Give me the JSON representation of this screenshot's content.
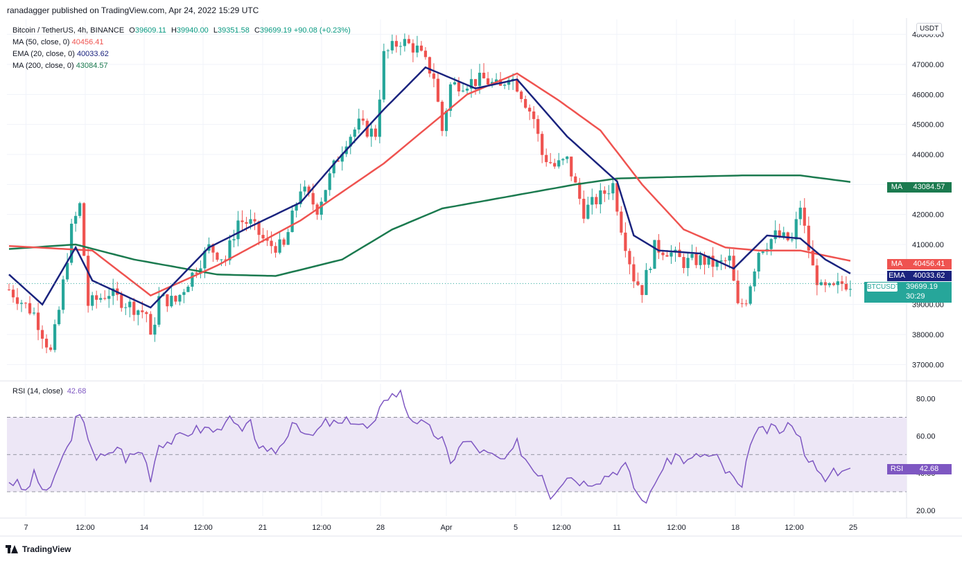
{
  "header": {
    "publisher": "ranadagger published on TradingView.com, Apr 24, 2022 15:29 UTC",
    "symbol": "Bitcoin / TetherUS, 4h, BINANCE",
    "open_label": "O",
    "open": "39609.11",
    "high_label": "H",
    "high": "39940.00",
    "low_label": "L",
    "low": "39351.58",
    "close_label": "C",
    "close": "39699.19",
    "change": "+90.08 (+0.23%)",
    "ma50_label": "MA (50, close, 0)",
    "ma50_value": "40456.41",
    "ema20_label": "EMA (20, close, 0)",
    "ema20_value": "40033.62",
    "ma200_label": "MA (200, close, 0)",
    "ma200_value": "43084.57",
    "rsi_label": "RSI (14, close)",
    "rsi_value": "42.68",
    "currency": "USDT"
  },
  "badges": {
    "ma200": {
      "tag": "MA",
      "value": "43084.57"
    },
    "ma50": {
      "tag": "MA",
      "value": "40456.41"
    },
    "ema20": {
      "tag": "EMA",
      "value": "40033.62"
    },
    "price": {
      "symbol": "BTCUSDT",
      "value": "39699.19",
      "countdown": "30:29"
    },
    "rsi": {
      "tag": "RSI",
      "value": "42.68"
    }
  },
  "footer": {
    "brand": "TradingView"
  },
  "colors": {
    "up": "#26a69a",
    "down": "#ef5350",
    "ma50": "#ef5350",
    "ema20": "#1a237e",
    "ma200": "#1b7a4f",
    "rsi": "#7e57c2",
    "rsi_band": "#ede7f6",
    "grid": "#f0f3fa"
  },
  "chart_data": [
    {
      "type": "candlestick",
      "title": "Bitcoin / TetherUS, 4h, BINANCE",
      "ylim": [
        36500,
        48500
      ],
      "yticks": [
        "48000.00",
        "47000.00",
        "46000.00",
        "45000.00",
        "44000.00",
        "43000.00",
        "42000.00",
        "41000.00",
        "40000.00",
        "39000.00",
        "38000.00",
        "37000.00"
      ],
      "xticks": [
        "7",
        "12:00",
        "14",
        "12:00",
        "21",
        "12:00",
        "28",
        "Apr",
        "5",
        "12:00",
        "11",
        "12:00",
        "18",
        "12:00",
        "25"
      ],
      "close_path": [
        [
          0,
          39500
        ],
        [
          6,
          38700
        ],
        [
          10,
          37400
        ],
        [
          12,
          38800
        ],
        [
          15,
          41500
        ],
        [
          17,
          42300
        ],
        [
          19,
          39000
        ],
        [
          24,
          39400
        ],
        [
          26,
          39200
        ],
        [
          30,
          38900
        ],
        [
          33,
          38700
        ],
        [
          34,
          37800
        ],
        [
          36,
          39200
        ],
        [
          40,
          39100
        ],
        [
          44,
          40000
        ],
        [
          48,
          40900
        ],
        [
          52,
          40500
        ],
        [
          55,
          41800
        ],
        [
          58,
          41700
        ],
        [
          62,
          41000
        ],
        [
          66,
          40900
        ],
        [
          70,
          42900
        ],
        [
          74,
          42200
        ],
        [
          78,
          43600
        ],
        [
          81,
          44500
        ],
        [
          84,
          45000
        ],
        [
          86,
          44800
        ],
        [
          88,
          44700
        ],
        [
          90,
          47300
        ],
        [
          94,
          47800
        ],
        [
          98,
          47500
        ],
        [
          102,
          46600
        ],
        [
          104,
          44800
        ],
        [
          106,
          46300
        ],
        [
          110,
          46400
        ],
        [
          114,
          46500
        ],
        [
          118,
          46200
        ],
        [
          120,
          46700
        ],
        [
          122,
          46300
        ],
        [
          126,
          45200
        ],
        [
          128,
          44000
        ],
        [
          131,
          43600
        ],
        [
          134,
          43800
        ],
        [
          138,
          42100
        ],
        [
          142,
          42600
        ],
        [
          145,
          43000
        ],
        [
          147,
          41600
        ],
        [
          150,
          39900
        ],
        [
          152,
          39500
        ],
        [
          155,
          40900
        ],
        [
          158,
          40800
        ],
        [
          162,
          40400
        ],
        [
          166,
          40500
        ],
        [
          170,
          40300
        ],
        [
          173,
          40500
        ],
        [
          175,
          38900
        ],
        [
          177,
          39200
        ],
        [
          180,
          40800
        ],
        [
          184,
          41300
        ],
        [
          188,
          41100
        ],
        [
          190,
          42300
        ],
        [
          191,
          41500
        ],
        [
          193,
          40200
        ],
        [
          195,
          39500
        ],
        [
          198,
          39500
        ],
        [
          200,
          39700
        ],
        [
          202,
          39699
        ]
      ],
      "ma50": [
        [
          0,
          40950
        ],
        [
          20,
          40800
        ],
        [
          34,
          39300
        ],
        [
          50,
          40300
        ],
        [
          70,
          41800
        ],
        [
          90,
          43700
        ],
        [
          110,
          46000
        ],
        [
          122,
          46700
        ],
        [
          132,
          45800
        ],
        [
          142,
          44800
        ],
        [
          152,
          43000
        ],
        [
          162,
          41500
        ],
        [
          172,
          40900
        ],
        [
          180,
          40800
        ],
        [
          190,
          40800
        ],
        [
          202,
          40456
        ]
      ],
      "ema20": [
        [
          0,
          40000
        ],
        [
          8,
          39000
        ],
        [
          16,
          40900
        ],
        [
          20,
          39800
        ],
        [
          34,
          38900
        ],
        [
          48,
          40900
        ],
        [
          58,
          41600
        ],
        [
          70,
          42400
        ],
        [
          80,
          44000
        ],
        [
          90,
          45500
        ],
        [
          100,
          46900
        ],
        [
          112,
          46200
        ],
        [
          122,
          46500
        ],
        [
          134,
          44600
        ],
        [
          142,
          43600
        ],
        [
          146,
          43100
        ],
        [
          150,
          41300
        ],
        [
          156,
          40800
        ],
        [
          166,
          40700
        ],
        [
          174,
          40200
        ],
        [
          182,
          41300
        ],
        [
          190,
          41200
        ],
        [
          196,
          40500
        ],
        [
          202,
          40033
        ]
      ],
      "ma200": [
        [
          0,
          40850
        ],
        [
          16,
          41000
        ],
        [
          30,
          40500
        ],
        [
          50,
          40000
        ],
        [
          64,
          39950
        ],
        [
          80,
          40500
        ],
        [
          92,
          41500
        ],
        [
          104,
          42200
        ],
        [
          120,
          42600
        ],
        [
          136,
          43000
        ],
        [
          146,
          43200
        ],
        [
          160,
          43250
        ],
        [
          176,
          43300
        ],
        [
          190,
          43300
        ],
        [
          202,
          43084
        ]
      ]
    },
    {
      "type": "line",
      "title": "RSI (14, close)",
      "ylim": [
        17,
        88
      ],
      "yticks": [
        "80.00",
        "60.00",
        "40.00",
        "20.00"
      ],
      "bands": [
        30,
        50,
        70
      ],
      "series": [
        {
          "name": "RSI",
          "values": [
            [
              0,
              36
            ],
            [
              2,
              34
            ],
            [
              4,
              30
            ],
            [
              6,
              39
            ],
            [
              8,
              32
            ],
            [
              10,
              30
            ],
            [
              12,
              45
            ],
            [
              14,
              53
            ],
            [
              16,
              68
            ],
            [
              17,
              70
            ],
            [
              19,
              60
            ],
            [
              21,
              48
            ],
            [
              24,
              49
            ],
            [
              26,
              55
            ],
            [
              28,
              48
            ],
            [
              32,
              52
            ],
            [
              34,
              38
            ],
            [
              36,
              56
            ],
            [
              40,
              58
            ],
            [
              44,
              63
            ],
            [
              48,
              64
            ],
            [
              50,
              62
            ],
            [
              52,
              70
            ],
            [
              56,
              62
            ],
            [
              58,
              66
            ],
            [
              60,
              55
            ],
            [
              62,
              49
            ],
            [
              66,
              56
            ],
            [
              68,
              69
            ],
            [
              70,
              65
            ],
            [
              72,
              58
            ],
            [
              76,
              67
            ],
            [
              80,
              66
            ],
            [
              82,
              69
            ],
            [
              86,
              64
            ],
            [
              88,
              66
            ],
            [
              90,
              81
            ],
            [
              94,
              83
            ],
            [
              96,
              71
            ],
            [
              100,
              65
            ],
            [
              104,
              58
            ],
            [
              106,
              44
            ],
            [
              108,
              55
            ],
            [
              110,
              57
            ],
            [
              114,
              51
            ],
            [
              118,
              47
            ],
            [
              120,
              48
            ],
            [
              122,
              56
            ],
            [
              124,
              48
            ],
            [
              126,
              42
            ],
            [
              128,
              40
            ],
            [
              130,
              28
            ],
            [
              132,
              34
            ],
            [
              134,
              39
            ],
            [
              138,
              35
            ],
            [
              142,
              37
            ],
            [
              146,
              42
            ],
            [
              148,
              44
            ],
            [
              150,
              33
            ],
            [
              152,
              25
            ],
            [
              154,
              28
            ],
            [
              156,
              40
            ],
            [
              160,
              50
            ],
            [
              163,
              46
            ],
            [
              166,
              50
            ],
            [
              170,
              48
            ],
            [
              172,
              41
            ],
            [
              174,
              37
            ],
            [
              176,
              30
            ],
            [
              178,
              58
            ],
            [
              180,
              62
            ],
            [
              184,
              64
            ],
            [
              186,
              62
            ],
            [
              188,
              68
            ],
            [
              190,
              58
            ],
            [
              191,
              52
            ],
            [
              193,
              45
            ],
            [
              194,
              40
            ],
            [
              196,
              36
            ],
            [
              198,
              42
            ],
            [
              200,
              41
            ],
            [
              202,
              42.68
            ]
          ]
        }
      ]
    }
  ]
}
